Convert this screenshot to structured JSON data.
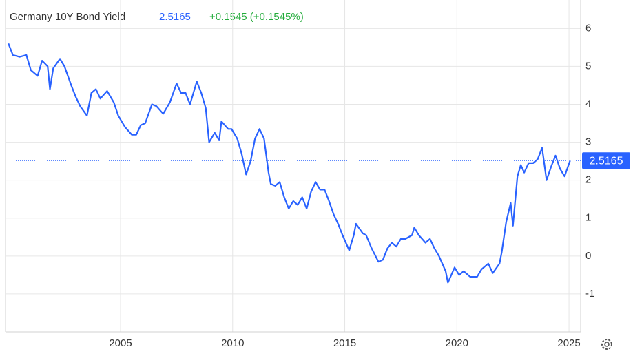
{
  "chart_data": {
    "type": "line",
    "title": "Germany 10Y Bond Yield",
    "last_value": 2.5165,
    "change": "+0.1545 (+0.1545%)",
    "x": [
      2000.0,
      2000.2,
      2000.5,
      2000.8,
      2001.0,
      2001.3,
      2001.5,
      2001.75,
      2001.85,
      2002.0,
      2002.3,
      2002.5,
      2002.8,
      2003.0,
      2003.2,
      2003.5,
      2003.7,
      2003.9,
      2004.1,
      2004.4,
      2004.7,
      2004.9,
      2005.2,
      2005.5,
      2005.7,
      2005.9,
      2006.1,
      2006.4,
      2006.6,
      2006.9,
      2007.2,
      2007.5,
      2007.7,
      2007.9,
      2008.1,
      2008.4,
      2008.6,
      2008.8,
      2008.95,
      2009.2,
      2009.4,
      2009.5,
      2009.8,
      2009.95,
      2010.2,
      2010.4,
      2010.6,
      2010.8,
      2011.0,
      2011.2,
      2011.4,
      2011.6,
      2011.7,
      2011.9,
      2012.1,
      2012.3,
      2012.5,
      2012.7,
      2012.9,
      2013.1,
      2013.3,
      2013.5,
      2013.7,
      2013.9,
      2014.1,
      2014.3,
      2014.5,
      2014.7,
      2014.9,
      2015.2,
      2015.4,
      2015.5,
      2015.8,
      2015.95,
      2016.2,
      2016.5,
      2016.7,
      2016.9,
      2017.1,
      2017.3,
      2017.5,
      2017.7,
      2018.0,
      2018.1,
      2018.3,
      2018.6,
      2018.8,
      2019.0,
      2019.2,
      2019.5,
      2019.6,
      2019.9,
      2020.1,
      2020.3,
      2020.6,
      2020.9,
      2021.1,
      2021.4,
      2021.6,
      2021.9,
      2022.0,
      2022.2,
      2022.4,
      2022.5,
      2022.7,
      2022.85,
      2023.0,
      2023.2,
      2023.4,
      2023.6,
      2023.8,
      2024.0,
      2024.2,
      2024.4,
      2024.6,
      2024.8,
      2024.95,
      2025.05
    ],
    "series": [
      {
        "name": "Germany 10Y Bond Yield",
        "color": "#2962ff",
        "values": [
          5.6,
          5.3,
          5.25,
          5.3,
          4.9,
          4.75,
          5.15,
          5.0,
          4.4,
          4.95,
          5.2,
          5.0,
          4.5,
          4.2,
          3.95,
          3.7,
          4.3,
          4.4,
          4.15,
          4.35,
          4.05,
          3.7,
          3.4,
          3.2,
          3.2,
          3.45,
          3.5,
          4.0,
          3.95,
          3.75,
          4.05,
          4.55,
          4.3,
          4.3,
          4.0,
          4.6,
          4.3,
          3.9,
          3.0,
          3.25,
          3.05,
          3.55,
          3.35,
          3.35,
          3.1,
          2.7,
          2.15,
          2.5,
          3.1,
          3.35,
          3.1,
          2.2,
          1.9,
          1.85,
          1.95,
          1.55,
          1.25,
          1.45,
          1.35,
          1.55,
          1.25,
          1.7,
          1.95,
          1.75,
          1.75,
          1.45,
          1.1,
          0.85,
          0.55,
          0.15,
          0.55,
          0.85,
          0.6,
          0.55,
          0.2,
          -0.15,
          -0.1,
          0.2,
          0.35,
          0.25,
          0.45,
          0.45,
          0.55,
          0.75,
          0.55,
          0.35,
          0.45,
          0.2,
          0.0,
          -0.4,
          -0.7,
          -0.3,
          -0.5,
          -0.4,
          -0.55,
          -0.55,
          -0.35,
          -0.2,
          -0.45,
          -0.2,
          0.1,
          0.9,
          1.4,
          0.8,
          2.1,
          2.4,
          2.2,
          2.45,
          2.45,
          2.55,
          2.85,
          2.0,
          2.35,
          2.65,
          2.3,
          2.1,
          2.35,
          2.5165
        ]
      }
    ],
    "xlim": [
      1999.87,
      2025.52
    ],
    "ylim": [
      -2,
      6.75
    ],
    "xticks": [
      2005,
      2010,
      2015,
      2020,
      2025
    ],
    "yticks": [
      -1,
      0,
      1,
      2,
      3,
      4,
      5,
      6
    ],
    "grid": true
  }
}
